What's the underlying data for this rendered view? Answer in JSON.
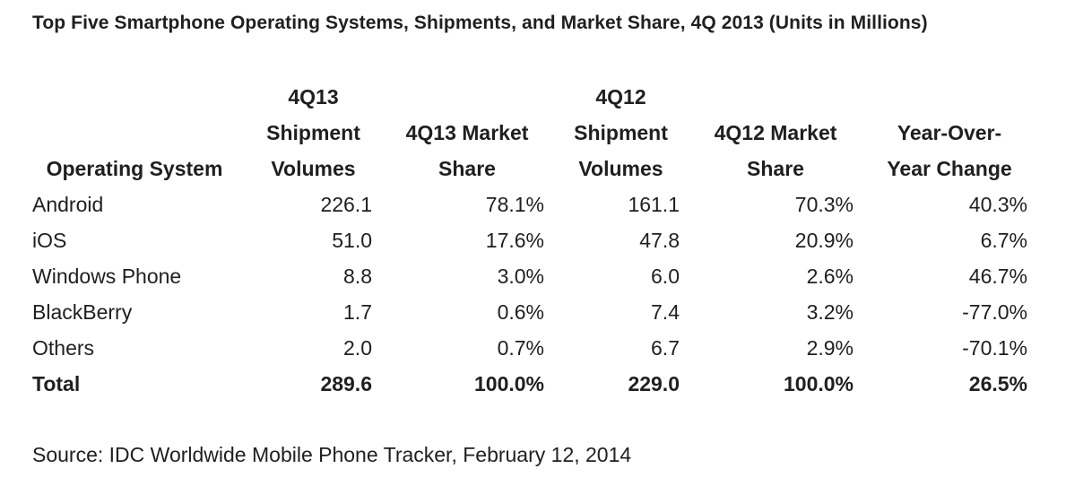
{
  "title": "Top Five Smartphone Operating Systems, Shipments, and Market Share, 4Q 2013 (Units in Millions)",
  "headers": [
    [
      "Operating System"
    ],
    [
      "4Q13",
      "Shipment",
      "Volumes"
    ],
    [
      "4Q13 Market",
      "Share"
    ],
    [
      "4Q12",
      "Shipment",
      "Volumes"
    ],
    [
      "4Q12 Market",
      "Share"
    ],
    [
      "Year-Over-",
      "Year Change"
    ]
  ],
  "rows": [
    [
      "Android",
      "226.1",
      "78.1%",
      "161.1",
      "70.3%",
      "40.3%"
    ],
    [
      "iOS",
      "51.0",
      "17.6%",
      "47.8",
      "20.9%",
      "6.7%"
    ],
    [
      "Windows Phone",
      "8.8",
      "3.0%",
      "6.0",
      "2.6%",
      "46.7%"
    ],
    [
      "BlackBerry",
      "1.7",
      "0.6%",
      "7.4",
      "3.2%",
      "-77.0%"
    ],
    [
      "Others",
      "2.0",
      "0.7%",
      "6.7",
      "2.9%",
      "-70.1%"
    ]
  ],
  "total": [
    "Total",
    "289.6",
    "100.0%",
    "229.0",
    "100.0%",
    "26.5%"
  ],
  "source": "Source: IDC Worldwide Mobile Phone Tracker, February 12, 2014"
}
